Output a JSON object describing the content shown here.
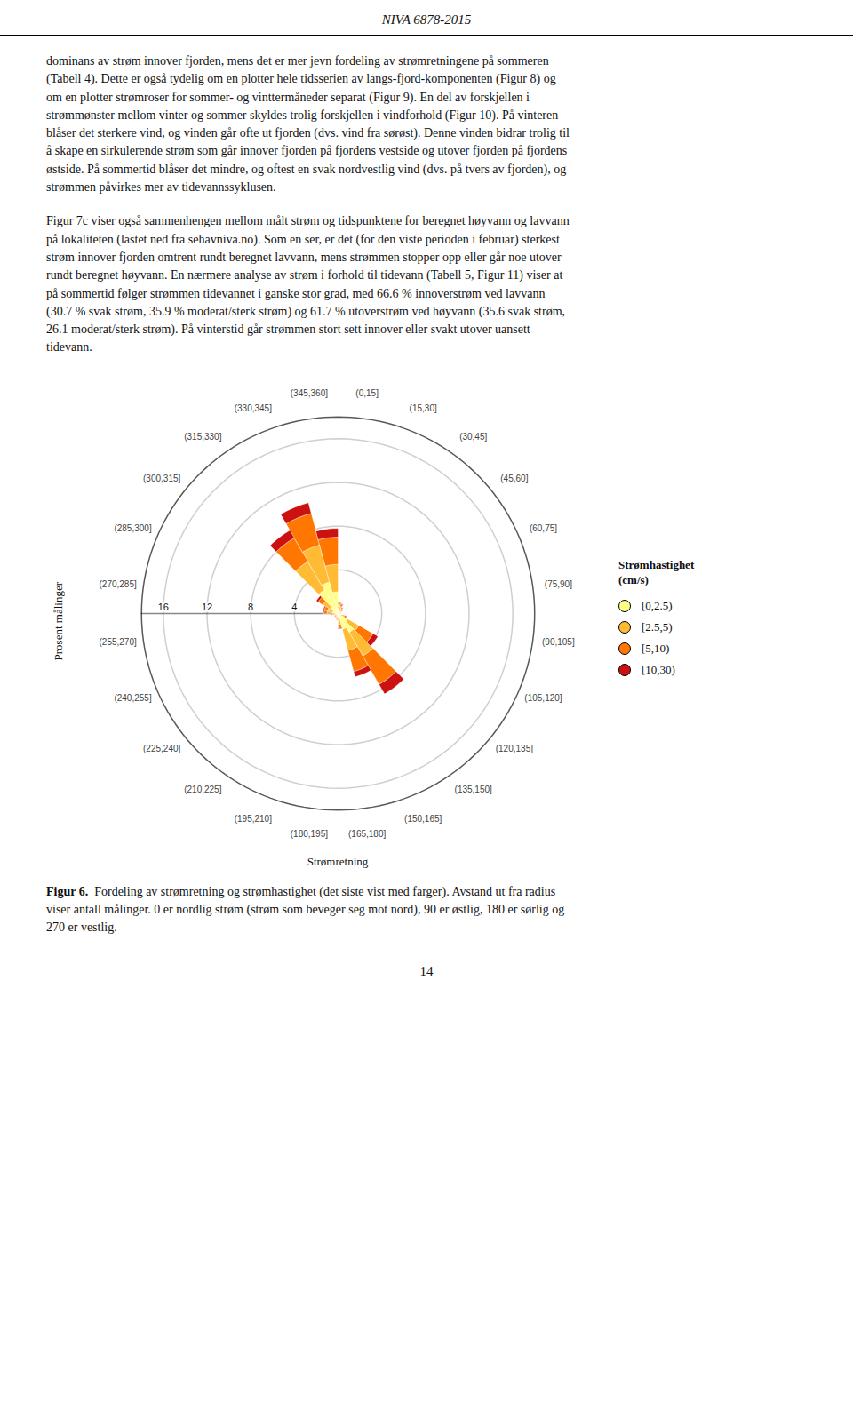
{
  "chart_data": {
    "type": "rose",
    "title": "NIVA 6878-2015",
    "paragraphs": [
      "dominans av strøm innover fjorden, mens det er mer jevn fordeling av strømretningene på sommeren\n(Tabell 4). Dette er også tydelig om en plotter hele tidsserien av langs-fjord-komponenten (Figur 8) og\nom en plotter strømroser for sommer- og vinttermåneder separat (Figur 9). En del av forskjellen i\nstrømmønster mellom vinter og sommer skyldes trolig forskjellen i vindforhold (Figur 10). På vinteren\nblåser det sterkere vind, og vinden går ofte ut fjorden (dvs. vind fra sørøst). Denne vinden bidrar trolig til\nå skape en sirkulerende strøm som går innover fjorden på fjordens vestside og utover fjorden på fjordens\nøstside. På sommertid blåser det mindre, og oftest en svak nordvestlig vind (dvs. på tvers av fjorden), og\nstrømmen påvirkes mer av tidevannssyklusen.",
      "Figur 7c viser også sammenhengen mellom målt strøm og tidspunktene for beregnet høyvann og lavvann\npå lokaliteten (lastet ned fra sehavniva.no). Som en ser, er det (for den viste perioden i februar) sterkest\nstrøm innover fjorden omtrent rundt beregnet lavvann, mens strømmen stopper opp eller går noe utover\nrundt beregnet høyvann. En nærmere analyse av strøm i forhold til tidevann (Tabell 5, Figur 11) viser at\npå sommertid følger strømmen tidevannet i ganske stor grad, med 66.6 % innoverstrøm ved lavvann\n(30.7 % svak strøm, 35.9 % moderat/sterk strøm) og 61.7 % utoverstrøm ved høyvann (35.6 svak strøm,\n26.1 moderat/sterk strøm). På vinterstid går strømmen stort sett innover eller svakt utover uansett\ntidevann."
    ],
    "xlabel": "Strømretning",
    "ylabel": "Prosent målinger",
    "categories": [
      "(0,15]",
      "(15,30]",
      "(30,45]",
      "(45,60]",
      "(60,75]",
      "(75,90]",
      "(90,105]",
      "(105,120]",
      "(120,135]",
      "(135,150]",
      "(150,165]",
      "(165,180]",
      "(180,195]",
      "(195,210]",
      "(210,225]",
      "(225,240]",
      "(240,255]",
      "(255,270]",
      "(270,285]",
      "(285,300]",
      "(300,315]",
      "(315,330]",
      "(330,345]",
      "(345,360]"
    ],
    "x": [
      7.5,
      22.5,
      37.5,
      52.5,
      67.5,
      82.5,
      97.5,
      112.5,
      127.5,
      142.5,
      157.5,
      172.5,
      187.5,
      202.5,
      217.5,
      232.5,
      247.5,
      262.5,
      277.5,
      292.5,
      307.5,
      322.5,
      337.5,
      352.5
    ],
    "width": 15,
    "series": [
      {
        "name": "[0,2.5)",
        "color": "#FFFF88",
        "values": [
          0.5,
          0.4,
          0.3,
          0.2,
          0.2,
          0.2,
          0.1,
          0.3,
          1.0,
          2.0,
          1.5,
          0.5,
          0.3,
          0.2,
          0.2,
          0.2,
          0.2,
          0.3,
          0.5,
          0.5,
          0.8,
          2.5,
          3.0,
          2.0
        ]
      },
      {
        "name": "[2.5,5)",
        "color": "#FFBB33",
        "values": [
          0.3,
          0.3,
          0.2,
          0.2,
          0.1,
          0.1,
          0.1,
          0.3,
          1.2,
          2.5,
          2.0,
          0.5,
          0.2,
          0.2,
          0.1,
          0.1,
          0.1,
          0.2,
          0.5,
          0.5,
          0.8,
          3.0,
          3.5,
          2.5
        ]
      },
      {
        "name": "[5,10)",
        "color": "#FF7700",
        "values": [
          0.2,
          0.2,
          0.1,
          0.1,
          0.0,
          0.0,
          0.0,
          0.2,
          1.5,
          3.0,
          2.0,
          0.3,
          0.1,
          0.1,
          0.1,
          0.1,
          0.0,
          0.1,
          0.3,
          0.3,
          0.5,
          2.5,
          3.0,
          2.5
        ]
      },
      {
        "name": "[10,30)",
        "color": "#CC1111",
        "values": [
          0.1,
          0.05,
          0.05,
          0.0,
          0.0,
          0.0,
          0.0,
          0.1,
          0.5,
          1.0,
          0.5,
          0.1,
          0.0,
          0.0,
          0.0,
          0.0,
          0.0,
          0.0,
          0.1,
          0.1,
          0.2,
          0.8,
          1.0,
          0.8
        ]
      }
    ],
    "stacked": true,
    "legend": "right",
    "legend_title": "Strømhastighet\n(cm/s)",
    "ylim": [
      0,
      18
    ],
    "yticks": [
      4,
      8,
      12,
      16
    ],
    "grid": true,
    "caption_label": "Figur 6.",
    "caption": "Fordeling av strømretning og strømhastighet (det siste vist med farger). Avstand ut fra radius\nviser antall målinger. 0 er nordlig strøm (strøm som beveger seg mot nord), 90 er østlig, 180 er sørlig og\n270 er vestlig.",
    "footer": "14"
  }
}
